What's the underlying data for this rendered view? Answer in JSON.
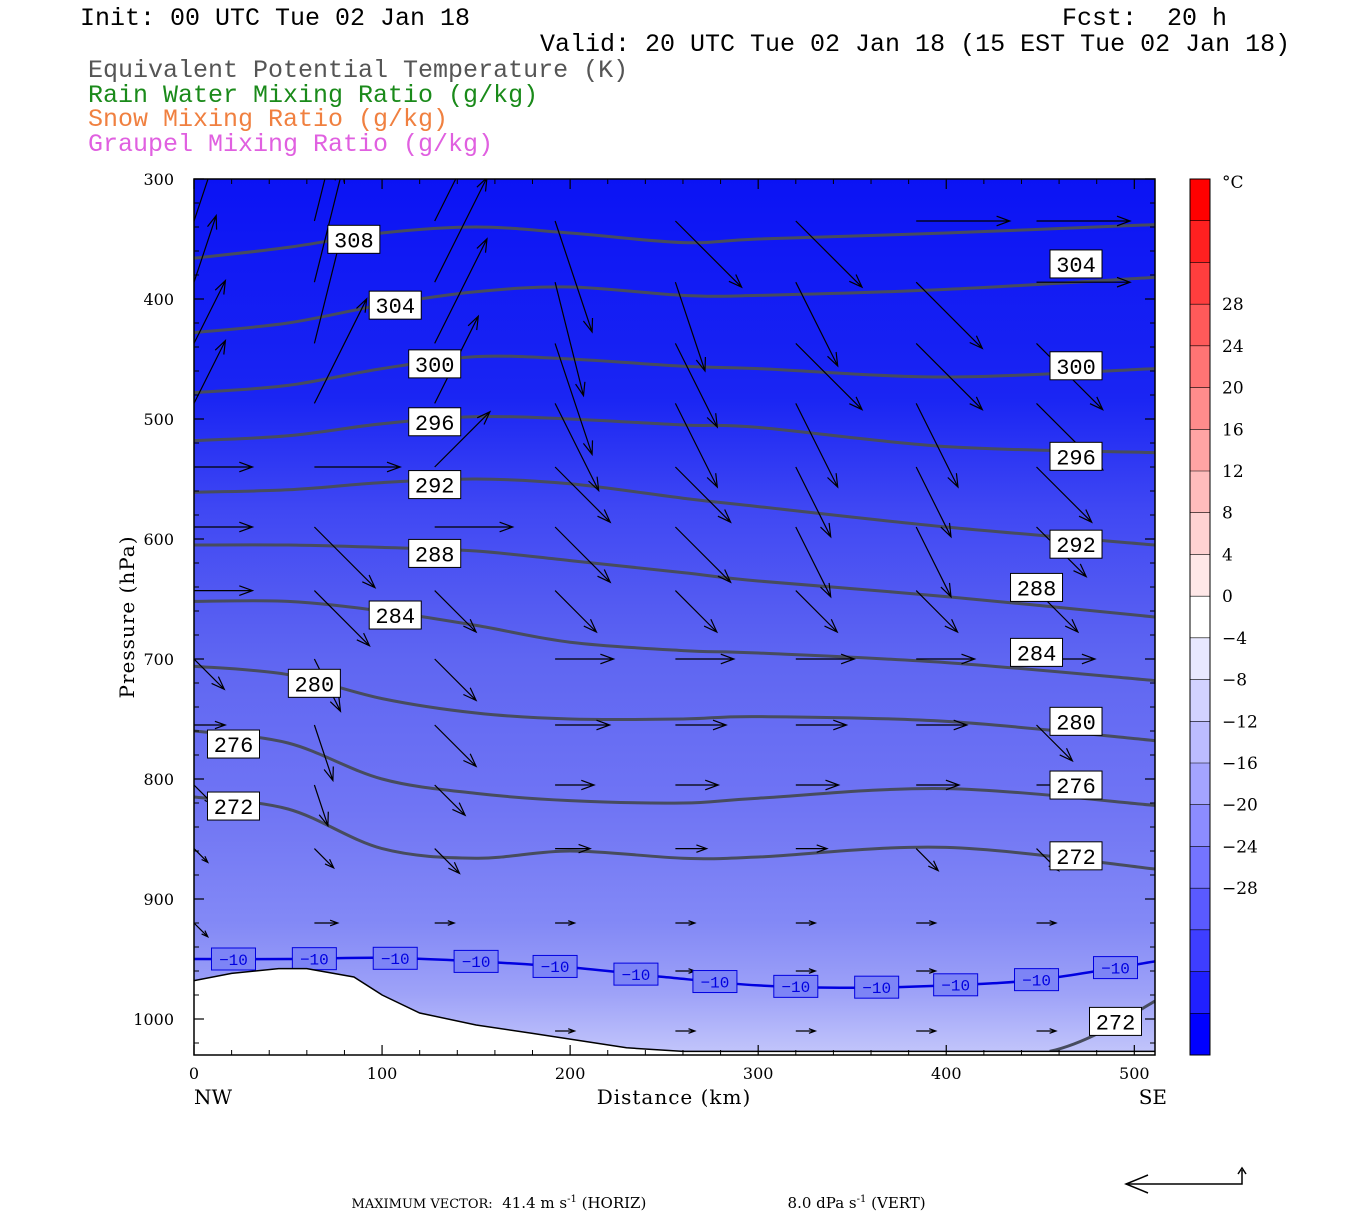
{
  "header": {
    "init": "Init: 00 UTC Tue 02 Jan 18",
    "fcst": "Fcst:  20 h",
    "valid": "Valid: 20 UTC Tue 02 Jan 18 (15 EST Tue 02 Jan 18)",
    "legend": [
      {
        "text": "Equivalent Potential Temperature (K)",
        "color": "#555555"
      },
      {
        "text": "Rain Water Mixing Ratio (g/kg)",
        "color": "#1a8a1a"
      },
      {
        "text": "Snow Mixing Ratio (g/kg)",
        "color": "#f08040"
      },
      {
        "text": "Graupel Mixing Ratio (g/kg)",
        "color": "#e060e0"
      }
    ]
  },
  "chart_data": {
    "type": "cross-section",
    "xlabel": "Distance (km)",
    "ylabel": "Pressure (hPa)",
    "xlim": [
      0,
      511
    ],
    "ylim": [
      1030,
      300
    ],
    "x_ticks": [
      0,
      100,
      200,
      300,
      400,
      500
    ],
    "y_ticks": [
      300,
      400,
      500,
      600,
      700,
      800,
      900,
      1000
    ],
    "left_end_label": "NW",
    "right_end_label": "SE",
    "colorbar": {
      "unit": "°C",
      "labels": [
        "28",
        "24",
        "20",
        "16",
        "12",
        "8",
        "4",
        "0",
        "−4",
        "−8",
        "−12",
        "−16",
        "−20",
        "−24",
        "−28"
      ],
      "colors": [
        "#ff0000",
        "#ff2020",
        "#ff3e3e",
        "#ff5a5a",
        "#ff7474",
        "#ff8c8c",
        "#ffa4a4",
        "#ffbcbc",
        "#ffd2d2",
        "#ffe8e8",
        "#ffffff",
        "#e8e8ff",
        "#d2d2ff",
        "#bcbcff",
        "#a4a4ff",
        "#8c8cff",
        "#7474ff",
        "#5a5aff",
        "#3e3eff",
        "#2020ff",
        "#0000ff"
      ]
    },
    "theta_e_contours": [
      {
        "label": "308",
        "points": [
          [
            0,
            366
          ],
          [
            50,
            357
          ],
          [
            100,
            345
          ],
          [
            150,
            340
          ],
          [
            200,
            345
          ],
          [
            260,
            353
          ],
          [
            300,
            350
          ],
          [
            400,
            345
          ],
          [
            511,
            338
          ]
        ]
      },
      {
        "label": "304",
        "points": [
          [
            0,
            428
          ],
          [
            50,
            420
          ],
          [
            100,
            405
          ],
          [
            150,
            394
          ],
          [
            200,
            390
          ],
          [
            260,
            397
          ],
          [
            300,
            397
          ],
          [
            400,
            392
          ],
          [
            511,
            382
          ]
        ]
      },
      {
        "label": "300",
        "points": [
          [
            0,
            478
          ],
          [
            50,
            472
          ],
          [
            100,
            458
          ],
          [
            150,
            448
          ],
          [
            200,
            450
          ],
          [
            260,
            456
          ],
          [
            300,
            458
          ],
          [
            400,
            465
          ],
          [
            511,
            458
          ]
        ]
      },
      {
        "label": "296",
        "points": [
          [
            0,
            518
          ],
          [
            50,
            514
          ],
          [
            100,
            504
          ],
          [
            150,
            498
          ],
          [
            200,
            500
          ],
          [
            260,
            505
          ],
          [
            300,
            507
          ],
          [
            400,
            523
          ],
          [
            511,
            528
          ]
        ]
      },
      {
        "label": "292",
        "points": [
          [
            0,
            561
          ],
          [
            50,
            559
          ],
          [
            100,
            553
          ],
          [
            150,
            550
          ],
          [
            200,
            554
          ],
          [
            260,
            566
          ],
          [
            300,
            573
          ],
          [
            400,
            590
          ],
          [
            511,
            605
          ]
        ]
      },
      {
        "label": "288",
        "points": [
          [
            0,
            605
          ],
          [
            50,
            605
          ],
          [
            100,
            607
          ],
          [
            150,
            610
          ],
          [
            200,
            618
          ],
          [
            260,
            628
          ],
          [
            300,
            635
          ],
          [
            400,
            648
          ],
          [
            511,
            665
          ]
        ]
      },
      {
        "label": "284",
        "points": [
          [
            0,
            652
          ],
          [
            50,
            652
          ],
          [
            100,
            660
          ],
          [
            150,
            672
          ],
          [
            200,
            686
          ],
          [
            260,
            693
          ],
          [
            300,
            695
          ],
          [
            400,
            703
          ],
          [
            511,
            718
          ]
        ]
      },
      {
        "label": "280",
        "points": [
          [
            0,
            706
          ],
          [
            50,
            713
          ],
          [
            100,
            733
          ],
          [
            150,
            745
          ],
          [
            200,
            750
          ],
          [
            260,
            750
          ],
          [
            300,
            748
          ],
          [
            400,
            752
          ],
          [
            511,
            768
          ]
        ]
      },
      {
        "label": "276",
        "points": [
          [
            0,
            760
          ],
          [
            50,
            770
          ],
          [
            100,
            800
          ],
          [
            150,
            812
          ],
          [
            200,
            818
          ],
          [
            260,
            820
          ],
          [
            300,
            816
          ],
          [
            400,
            808
          ],
          [
            511,
            822
          ]
        ]
      },
      {
        "label": "272",
        "points": [
          [
            0,
            815
          ],
          [
            50,
            825
          ],
          [
            100,
            858
          ],
          [
            150,
            866
          ],
          [
            200,
            860
          ],
          [
            260,
            866
          ],
          [
            300,
            865
          ],
          [
            400,
            857
          ],
          [
            511,
            875
          ]
        ]
      }
    ],
    "low_contour_label": "272",
    "temperature_isotherm": {
      "label": "−10",
      "color": "#0000e0",
      "points": [
        [
          0,
          950
        ],
        [
          50,
          950
        ],
        [
          100,
          949
        ],
        [
          150,
          952
        ],
        [
          200,
          957
        ],
        [
          250,
          965
        ],
        [
          300,
          972
        ],
        [
          350,
          974
        ],
        [
          400,
          972
        ],
        [
          450,
          967
        ],
        [
          511,
          952
        ]
      ]
    },
    "terrain": [
      [
        0,
        968
      ],
      [
        20,
        962
      ],
      [
        45,
        958
      ],
      [
        60,
        958
      ],
      [
        85,
        965
      ],
      [
        100,
        980
      ],
      [
        120,
        995
      ],
      [
        150,
        1005
      ],
      [
        180,
        1012
      ],
      [
        230,
        1024
      ],
      [
        260,
        1027
      ],
      [
        511,
        1027
      ]
    ],
    "vector_footer": {
      "prefix": "MAXIMUM VECTOR:",
      "horiz": "41.4 m s",
      "horiz_unit": "(HORIZ)",
      "vert": "8.0 dPa s",
      "vert_unit": "(VERT)",
      "exp": "-1"
    }
  }
}
